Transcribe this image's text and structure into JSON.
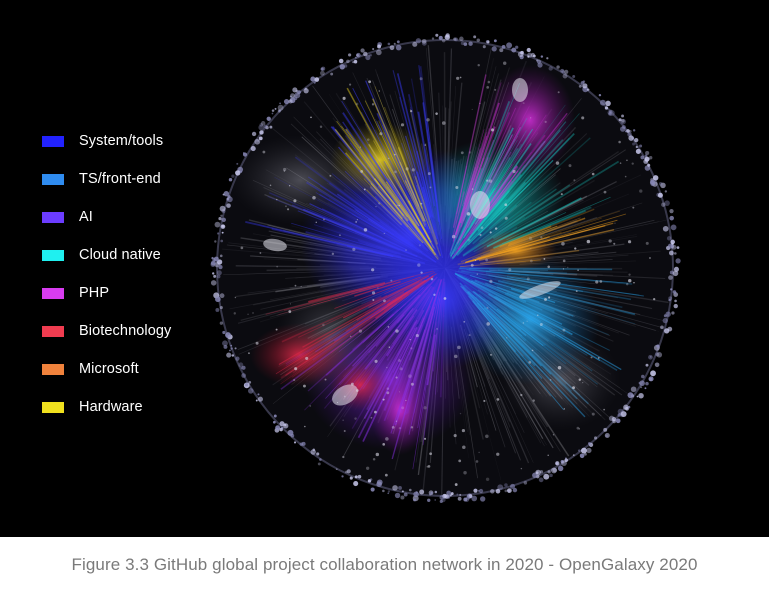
{
  "legend": {
    "items": [
      {
        "label": "System/tools",
        "color": "#2222ff"
      },
      {
        "label": "TS/front-end",
        "color": "#2f8cf0"
      },
      {
        "label": "AI",
        "color": "#6b3cff"
      },
      {
        "label": "Cloud native",
        "color": "#1ff0f0"
      },
      {
        "label": "PHP",
        "color": "#d83cf0"
      },
      {
        "label": "Biotechnology",
        "color": "#f03c50"
      },
      {
        "label": "Microsoft",
        "color": "#f0823c"
      },
      {
        "label": "Hardware",
        "color": "#f0e01e"
      }
    ]
  },
  "caption": "Figure 3.3 GitHub global project collaboration network in 2020 - OpenGalaxy 2020"
}
